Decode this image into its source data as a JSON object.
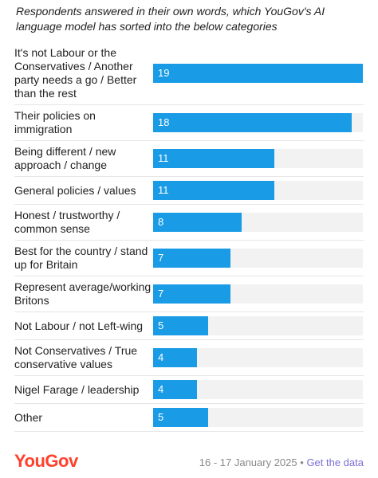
{
  "chart_data": {
    "type": "bar",
    "subtitle": "Respondents answered in their own words, which YouGov's AI language model has sorted into the below categories",
    "categories": [
      "It's not Labour or the Conservatives / Another party needs a go / Better than the rest",
      "Their policies on immigration",
      "Being different / new approach / change",
      "General policies / values",
      "Honest / trustworthy / common sense",
      "Best for the country / stand up for Britain",
      "Represent average/working Britons",
      "Not Labour / not Left-wing",
      "Not Conservatives / True conservative values",
      "Nigel Farage / leadership",
      "Other"
    ],
    "values": [
      19,
      18,
      11,
      11,
      8,
      7,
      7,
      5,
      4,
      4,
      5
    ],
    "color": "#1a9be6"
  },
  "footer": {
    "logo": "YouGov",
    "date": "16 - 17 January 2025",
    "separator": "•",
    "link": "Get the data"
  }
}
